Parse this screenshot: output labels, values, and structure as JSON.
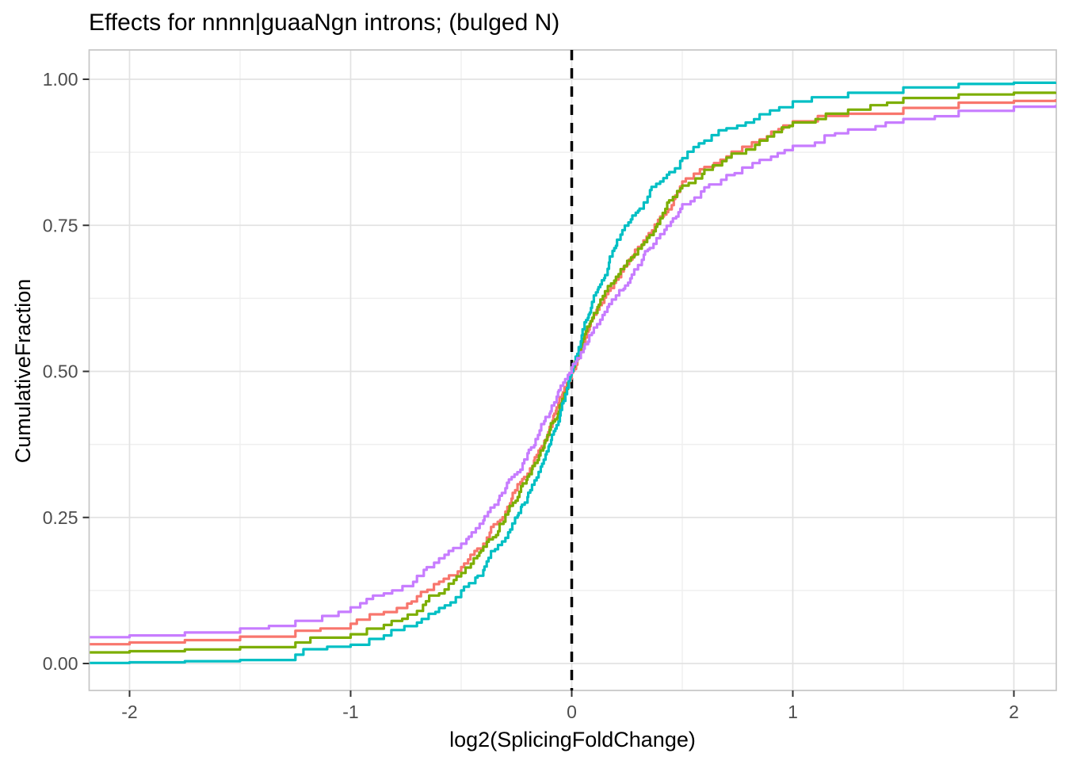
{
  "chart_data": {
    "type": "line",
    "subtype": "ecdf-step-curves",
    "title": "Effects for nnnn|guaaNgn introns; (bulged N)",
    "xlabel": "log2(SplicingFoldChange)",
    "ylabel": "CumulativeFraction",
    "xlim": [
      -2.18,
      2.19
    ],
    "ylim": [
      -0.046,
      1.05
    ],
    "grid": true,
    "legend_position": "none",
    "x_ticks": {
      "values": [
        -2,
        -1,
        0,
        1,
        2
      ],
      "labels": [
        "-2",
        "-1",
        "0",
        "1",
        "2"
      ]
    },
    "y_ticks": {
      "values": [
        0,
        0.25,
        0.5,
        0.75,
        1.0
      ],
      "labels": [
        "0.00",
        "0.25",
        "0.50",
        "0.75",
        "1.00"
      ]
    },
    "x_minor": [
      -1.5,
      -0.5,
      0.5,
      1.5
    ],
    "y_minor": [
      0.125,
      0.375,
      0.625,
      0.875
    ],
    "vline": {
      "x": 0,
      "style": "dashed",
      "color": "#000000"
    },
    "x": [
      -2.18,
      -2.0,
      -1.75,
      -1.5,
      -1.25,
      -1.0,
      -0.85,
      -0.7,
      -0.6,
      -0.5,
      -0.4,
      -0.3,
      -0.2,
      -0.1,
      0.0,
      0.1,
      0.2,
      0.3,
      0.4,
      0.5,
      0.6,
      0.7,
      0.85,
      1.0,
      1.25,
      1.5,
      1.75,
      2.0,
      2.19
    ],
    "series": [
      {
        "name": "series-salmon",
        "color": "#F8766D",
        "values": [
          0.033,
          0.036,
          0.04,
          0.046,
          0.056,
          0.068,
          0.088,
          0.115,
          0.14,
          0.165,
          0.205,
          0.26,
          0.325,
          0.405,
          0.498,
          0.597,
          0.657,
          0.713,
          0.765,
          0.825,
          0.85,
          0.868,
          0.897,
          0.928,
          0.941,
          0.951,
          0.96,
          0.963,
          0.966
        ]
      },
      {
        "name": "series-green",
        "color": "#7CAE00",
        "values": [
          0.019,
          0.021,
          0.024,
          0.028,
          0.036,
          0.05,
          0.066,
          0.09,
          0.12,
          0.155,
          0.2,
          0.255,
          0.32,
          0.4,
          0.503,
          0.6,
          0.662,
          0.71,
          0.762,
          0.818,
          0.845,
          0.866,
          0.895,
          0.926,
          0.948,
          0.968,
          0.974,
          0.977,
          0.978
        ]
      },
      {
        "name": "series-teal",
        "color": "#00BFC4",
        "values": [
          0.001,
          0.002,
          0.004,
          0.006,
          0.015,
          0.032,
          0.048,
          0.07,
          0.095,
          0.125,
          0.16,
          0.215,
          0.285,
          0.375,
          0.5,
          0.63,
          0.715,
          0.775,
          0.825,
          0.865,
          0.895,
          0.916,
          0.94,
          0.962,
          0.977,
          0.986,
          0.992,
          0.994,
          0.995
        ]
      },
      {
        "name": "series-purple",
        "color": "#C77CFF",
        "values": [
          0.045,
          0.048,
          0.053,
          0.06,
          0.073,
          0.096,
          0.12,
          0.15,
          0.18,
          0.205,
          0.245,
          0.3,
          0.36,
          0.428,
          0.507,
          0.575,
          0.63,
          0.682,
          0.735,
          0.786,
          0.815,
          0.836,
          0.862,
          0.886,
          0.914,
          0.932,
          0.946,
          0.953,
          0.956
        ]
      }
    ],
    "style": {
      "panel_border_color": "#C6C6C6",
      "grid_major_color": "#E2E2E2",
      "grid_minor_color": "#EFEFEF",
      "tick_mark_color": "#333333",
      "tick_label_color": "#4D4D4D"
    }
  }
}
